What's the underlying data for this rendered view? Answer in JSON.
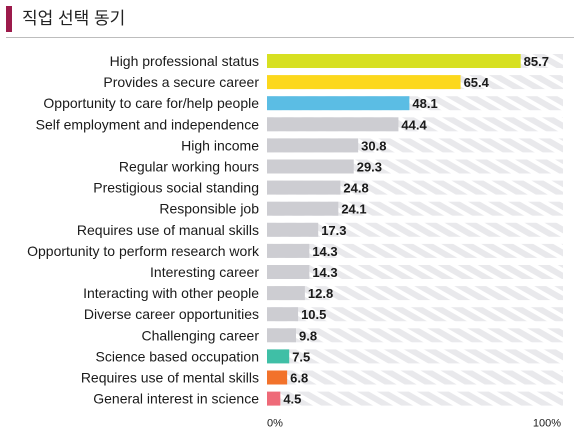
{
  "header": {
    "title": "직업 선택 동기"
  },
  "chart_data": {
    "type": "bar",
    "orientation": "horizontal",
    "categories": [
      "High professional status",
      "Provides a secure career",
      "Opportunity to care for/help people",
      "Self employment and independence",
      "High income",
      "Regular working hours",
      "Prestigious social standing",
      "Responsible job",
      "Requires use of manual skills",
      "Opportunity to perform research work",
      "Interesting career ",
      "Interacting with other people",
      "Diverse career opportunities",
      "Challenging career",
      "Science based occupation",
      "Requires use of mental skills",
      "General interest in science"
    ],
    "values": [
      85.7,
      65.4,
      48.1,
      44.4,
      30.8,
      29.3,
      24.8,
      24.1,
      17.3,
      14.3,
      14.3,
      12.8,
      10.5,
      9.8,
      7.5,
      6.8,
      4.5
    ],
    "value_labels": [
      "85.7",
      "65.4",
      "48.1",
      "44.4",
      "30.8",
      "29.3",
      "24.8",
      "24.1",
      "17.3",
      "14.3",
      "14.3",
      "12.8",
      "10.5",
      "9.8",
      "7.5",
      "6.8",
      "4.5"
    ],
    "bar_colors": [
      "#d7e021",
      "#fcd81c",
      "#5bbde4",
      "#cdcdd2",
      "#cdcdd2",
      "#cdcdd2",
      "#cdcdd2",
      "#cdcdd2",
      "#cdcdd2",
      "#cdcdd2",
      "#cdcdd2",
      "#cdcdd2",
      "#cdcdd2",
      "#cdcdd2",
      "#3fbfa6",
      "#f2722b",
      "#ee6a78"
    ],
    "track_color": "#e9e9ec",
    "xlim": [
      0,
      100
    ],
    "x_ticks": [
      "0%",
      "100%"
    ],
    "xlabel": "",
    "ylabel": "",
    "grid": false,
    "legend": "none"
  }
}
